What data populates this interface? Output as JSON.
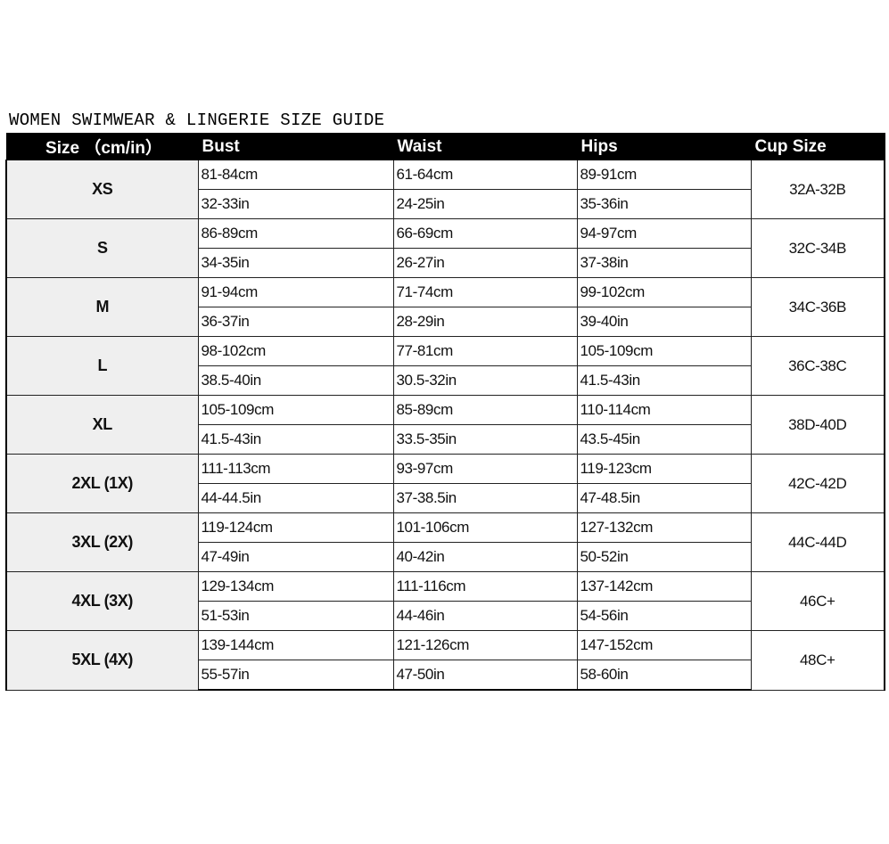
{
  "title": "WOMEN SWIMWEAR & LINGERIE SIZE GUIDE",
  "headers": [
    "Size （cm/in）",
    "Bust",
    "Waist",
    "Hips",
    "Cup Size"
  ],
  "rows": [
    {
      "size": "XS",
      "bust": [
        "81-84cm",
        "32-33in"
      ],
      "waist": [
        "61-64cm",
        "24-25in"
      ],
      "hips": [
        "89-91cm",
        "35-36in"
      ],
      "cup": "32A-32B"
    },
    {
      "size": "S",
      "bust": [
        "86-89cm",
        "34-35in"
      ],
      "waist": [
        "66-69cm",
        "26-27in"
      ],
      "hips": [
        "94-97cm",
        "37-38in"
      ],
      "cup": "32C-34B"
    },
    {
      "size": "M",
      "bust": [
        "91-94cm",
        "36-37in"
      ],
      "waist": [
        "71-74cm",
        "28-29in"
      ],
      "hips": [
        "99-102cm",
        "39-40in"
      ],
      "cup": "34C-36B"
    },
    {
      "size": "L",
      "bust": [
        "98-102cm",
        "38.5-40in"
      ],
      "waist": [
        "77-81cm",
        "30.5-32in"
      ],
      "hips": [
        "105-109cm",
        "41.5-43in"
      ],
      "cup": "36C-38C"
    },
    {
      "size": "XL",
      "bust": [
        "105-109cm",
        "41.5-43in"
      ],
      "waist": [
        "85-89cm",
        "33.5-35in"
      ],
      "hips": [
        "110-114cm",
        "43.5-45in"
      ],
      "cup": "38D-40D"
    },
    {
      "size": "2XL (1X)",
      "bust": [
        "111-113cm",
        "44-44.5in"
      ],
      "waist": [
        "93-97cm",
        "37-38.5in"
      ],
      "hips": [
        "119-123cm",
        "47-48.5in"
      ],
      "cup": "42C-42D"
    },
    {
      "size": "3XL (2X)",
      "bust": [
        "119-124cm",
        "47-49in"
      ],
      "waist": [
        "101-106cm",
        "40-42in"
      ],
      "hips": [
        "127-132cm",
        "50-52in"
      ],
      "cup": "44C-44D"
    },
    {
      "size": "4XL (3X)",
      "bust": [
        "129-134cm",
        "51-53in"
      ],
      "waist": [
        "111-116cm",
        "44-46in"
      ],
      "hips": [
        "137-142cm",
        "54-56in"
      ],
      "cup": "46C+"
    },
    {
      "size": "5XL (4X)",
      "bust": [
        "139-144cm",
        "55-57in"
      ],
      "waist": [
        "121-126cm",
        "47-50in"
      ],
      "hips": [
        "147-152cm",
        "58-60in"
      ],
      "cup": "48C+"
    }
  ]
}
